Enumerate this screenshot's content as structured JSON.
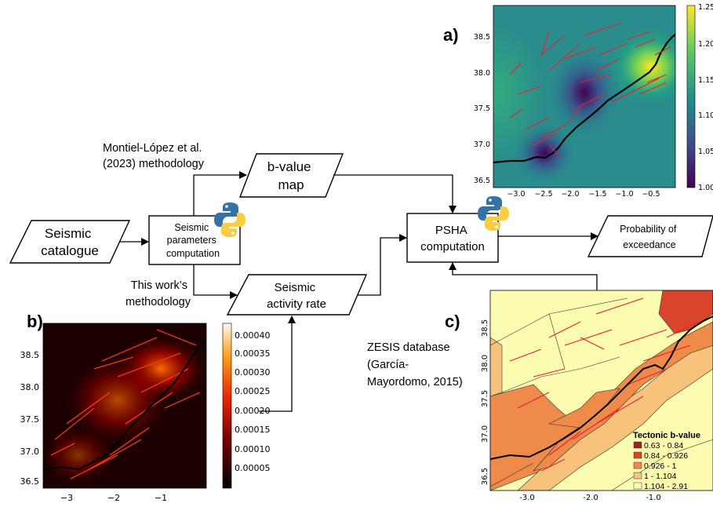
{
  "flow": {
    "catalogue": [
      "Seismic",
      "catalogue"
    ],
    "params": [
      "Seismic",
      "parameters",
      "computation"
    ],
    "bvalue": [
      "b-value",
      "map"
    ],
    "activity": [
      "Seismic",
      "activity rate"
    ],
    "psha": [
      "PSHA",
      "computation"
    ],
    "prob": [
      "Probability of",
      "exceedance"
    ],
    "montiel": [
      "Montiel-López et al.",
      "(2023) methodology"
    ],
    "thiswork": [
      "This work’s",
      "methodology"
    ],
    "zesis": [
      "ZESIS database",
      "(García-",
      "Mayordomo, 2015)"
    ]
  },
  "panels": {
    "a": {
      "label": "a)",
      "xticks": [
        "−3.0",
        "−2.5",
        "−2.0",
        "−1.5",
        "−1.0",
        "−0.5"
      ],
      "yticks": [
        "38.5",
        "38.0",
        "37.5",
        "37.0",
        "36.5"
      ],
      "colorbar": [
        "1.25",
        "1.20",
        "1.15",
        "1.10",
        "1.05",
        "1.00"
      ]
    },
    "b": {
      "label": "b)",
      "xticks": [
        "−3",
        "−2",
        "−1"
      ],
      "yticks": [
        "38.5",
        "38.0",
        "37.5",
        "37.0",
        "36.5"
      ],
      "colorbar": [
        "0.00040",
        "0.00035",
        "0.00030",
        "0.00025",
        "0.00020",
        "0.00015",
        "0.00010",
        "0.00005"
      ]
    },
    "c": {
      "label": "c)",
      "xticks": [
        "-3.0",
        "-2.0",
        "-1.0"
      ],
      "yticks": [
        "38.5",
        "38.0",
        "37.5",
        "37.0",
        "36.5"
      ],
      "legend_title": "Tectonic b-value",
      "legend": [
        {
          "label": "0.63 - 0.84",
          "color": "#a0202a"
        },
        {
          "label": "0.84 - 0.926",
          "color": "#d9452a"
        },
        {
          "label": "0.926 - 1",
          "color": "#ee8a4a"
        },
        {
          "label": "1 - 1.104",
          "color": "#f6c27c"
        },
        {
          "label": "1.104 - 2.91",
          "color": "#fcfcb0"
        }
      ]
    }
  }
}
